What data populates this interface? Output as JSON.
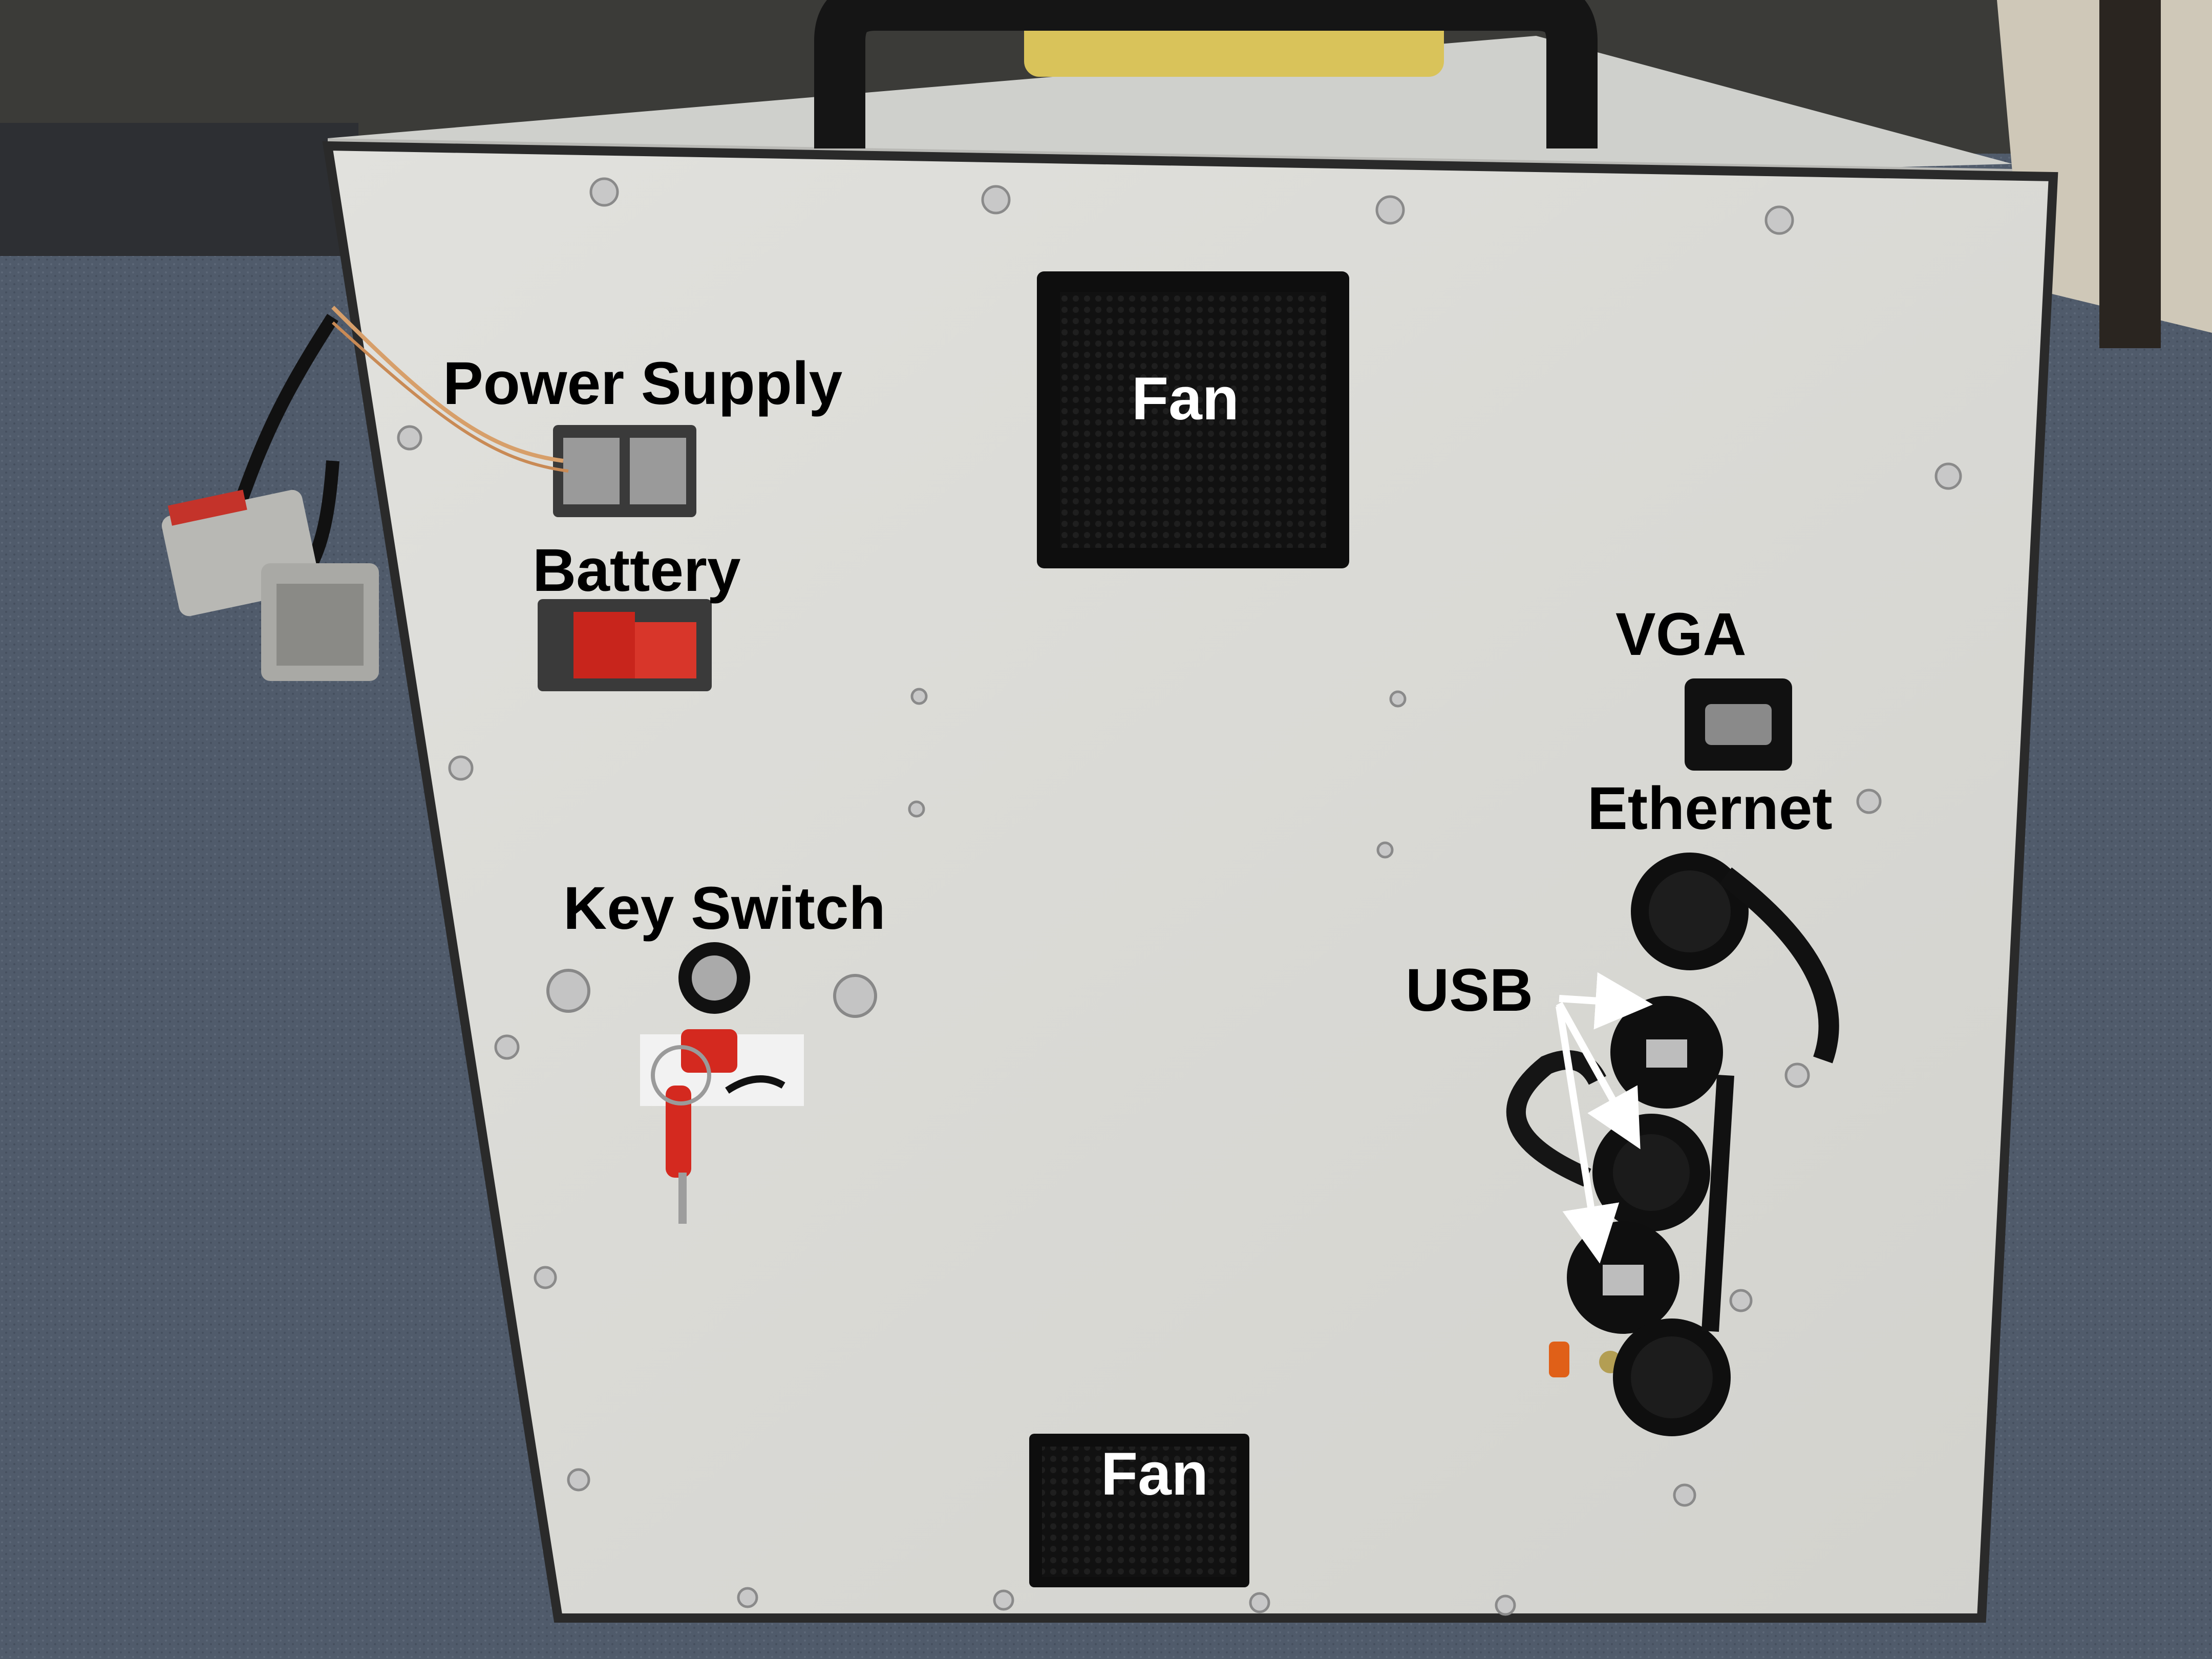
{
  "labels": {
    "power_supply": "Power Supply",
    "battery": "Battery",
    "fan_top": "Fan",
    "fan_bottom": "Fan",
    "vga": "VGA",
    "ethernet": "Ethernet",
    "key_switch": "Key Switch",
    "usb": "USB"
  },
  "colors": {
    "annotation_dark": "#000000",
    "annotation_light": "#ffffff",
    "panel": "#dcdcd8",
    "carpet": "#4e5a6b",
    "connector_red": "#c8251c"
  }
}
